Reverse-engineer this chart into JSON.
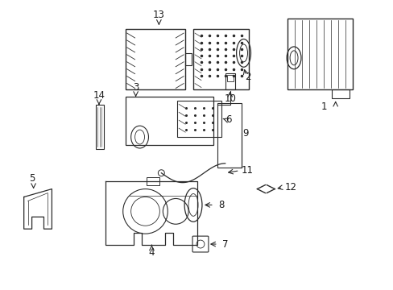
{
  "bg_color": "#ffffff",
  "line_color": "#2a2a2a",
  "text_color": "#1a1a1a",
  "label_fontsize": 8.5
}
